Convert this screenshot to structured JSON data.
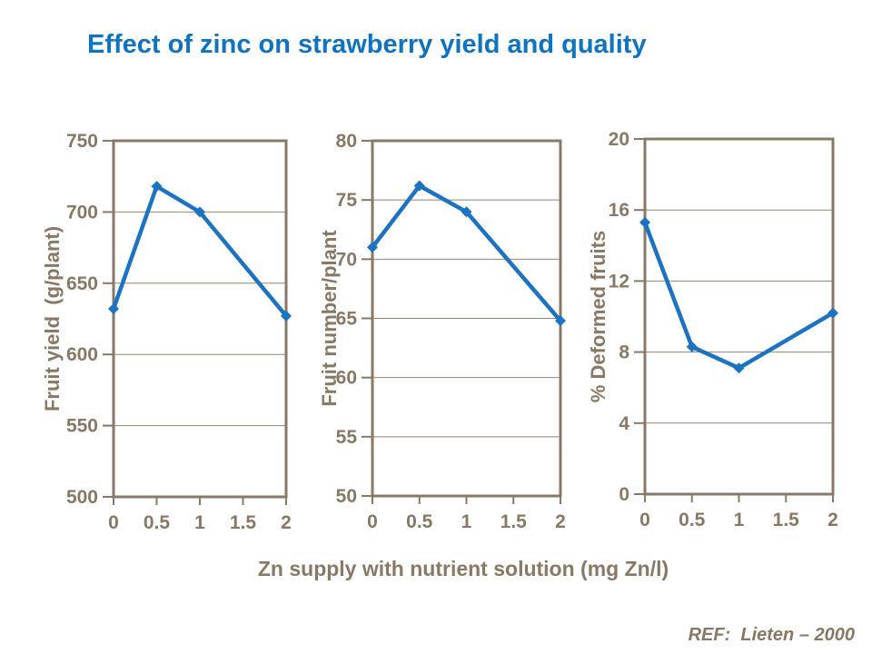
{
  "title": "Effect of zinc on strawberry yield and quality",
  "shared_x_label": "Zn supply with nutrient solution (mg Zn/l)",
  "ref": "REF:  Lieten – 2000",
  "colors": {
    "title_blue": "#0e74c2",
    "series_blue": "#1b73c2",
    "axis_brown": "#887864",
    "gridline_brown": "#93846e",
    "background": "#ffffff"
  },
  "chart_data": [
    {
      "type": "line",
      "title": "",
      "ylabel": "Fruit yield  (g/plant)",
      "xlabel": "",
      "x": [
        0,
        0.5,
        1,
        2
      ],
      "values": [
        632,
        718,
        700,
        627
      ],
      "xticks": [
        "0",
        "0.5",
        "1",
        "1.5",
        "2"
      ],
      "xtick_values": [
        0,
        0.5,
        1,
        1.5,
        2
      ],
      "yticks": [
        500,
        550,
        600,
        650,
        700,
        750
      ],
      "ylim": [
        500,
        750
      ],
      "xlim": [
        0,
        2
      ],
      "grid": "horizontal",
      "legend": "none",
      "marker": "diamond"
    },
    {
      "type": "line",
      "title": "",
      "ylabel": "Fruit number/plant",
      "xlabel": "",
      "x": [
        0,
        0.5,
        1,
        2
      ],
      "values": [
        71,
        76.2,
        74,
        64.8
      ],
      "xticks": [
        "0",
        "0.5",
        "1",
        "1.5",
        "2"
      ],
      "xtick_values": [
        0,
        0.5,
        1,
        1.5,
        2
      ],
      "yticks": [
        50,
        55,
        60,
        65,
        70,
        75,
        80
      ],
      "ylim": [
        50,
        80
      ],
      "xlim": [
        0,
        2
      ],
      "grid": "horizontal",
      "legend": "none",
      "marker": "diamond"
    },
    {
      "type": "line",
      "title": "",
      "ylabel": "% Deformed fruits",
      "xlabel": "",
      "x": [
        0,
        0.5,
        1,
        2
      ],
      "values": [
        15.3,
        8.3,
        7.1,
        10.2
      ],
      "xticks": [
        "0",
        "0.5",
        "1",
        "1.5",
        "2"
      ],
      "xtick_values": [
        0,
        0.5,
        1,
        1.5,
        2
      ],
      "yticks": [
        0,
        4,
        8,
        12,
        16,
        20
      ],
      "ylim": [
        0,
        20
      ],
      "xlim": [
        0,
        2
      ],
      "grid": "horizontal",
      "legend": "none",
      "marker": "diamond"
    }
  ]
}
